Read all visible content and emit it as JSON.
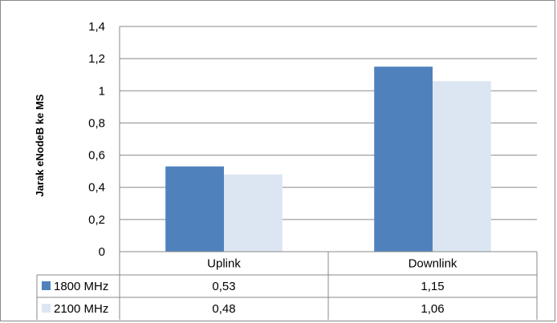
{
  "chart_data": {
    "type": "bar",
    "title": "",
    "ylabel": "Jarak eNodeB ke MS",
    "xlabel": "",
    "categories": [
      "Uplink",
      "Downlink"
    ],
    "series": [
      {
        "name": "1800 MHz",
        "values": [
          0.53,
          1.15
        ],
        "value_labels": [
          "0,53",
          "1,15"
        ],
        "color": "#4f81bd"
      },
      {
        "name": "2100 MHz",
        "values": [
          0.48,
          1.06
        ],
        "value_labels": [
          "0,48",
          "1,06"
        ],
        "color": "#dce6f2"
      }
    ],
    "ylim": [
      0,
      1.4
    ],
    "yticks": [
      {
        "value": 0,
        "label": "0"
      },
      {
        "value": 0.2,
        "label": "0,2"
      },
      {
        "value": 0.4,
        "label": "0,4"
      },
      {
        "value": 0.6,
        "label": "0,6"
      },
      {
        "value": 0.8,
        "label": "0,8"
      },
      {
        "value": 1.0,
        "label": "1"
      },
      {
        "value": 1.2,
        "label": "1,2"
      },
      {
        "value": 1.4,
        "label": "1,4"
      }
    ],
    "grid": true,
    "legend": "data-table"
  }
}
